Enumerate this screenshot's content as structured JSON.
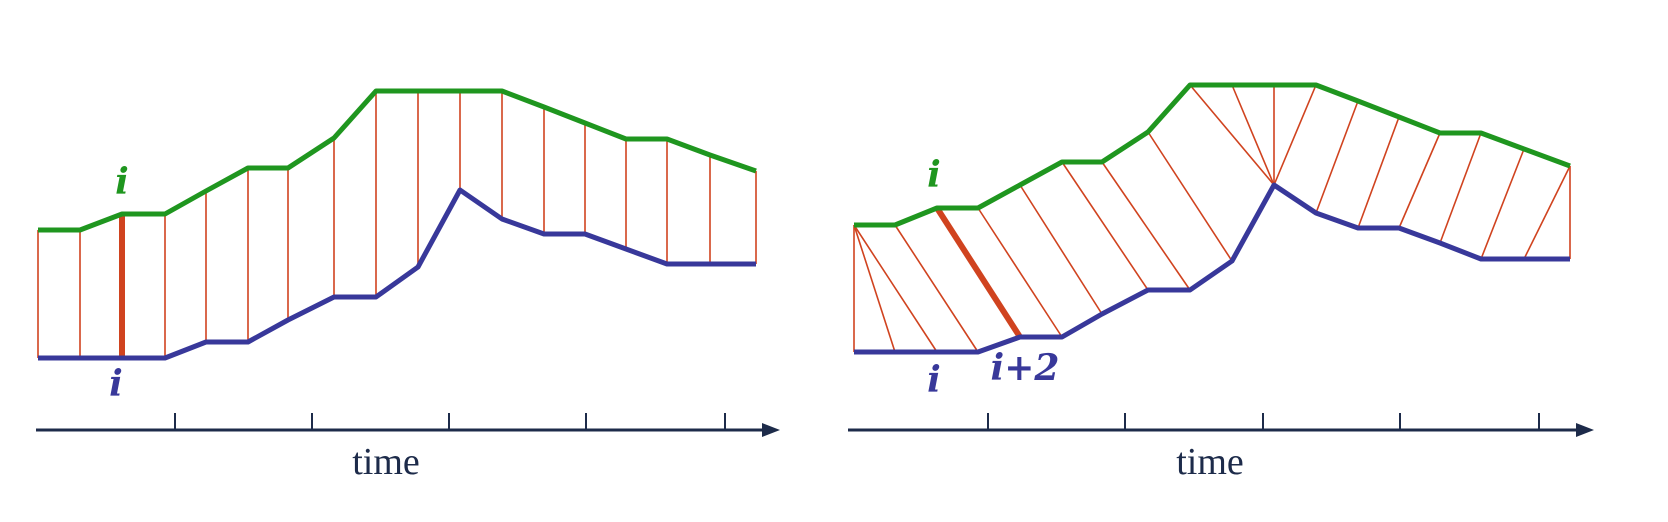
{
  "colors": {
    "top_series": "#1f961f",
    "bottom_series": "#38389a",
    "links": "#d0431f",
    "axis": "#1d2b4a",
    "background": "#ffffff"
  },
  "left_panel": {
    "top_label": "i",
    "bottom_label": "i",
    "axis_title": "time",
    "alignment": "one-to-one"
  },
  "right_panel": {
    "top_label": "i",
    "bottom_label": "i",
    "shifted_label": "i+2",
    "axis_title": "time",
    "alignment": "shifted"
  }
}
